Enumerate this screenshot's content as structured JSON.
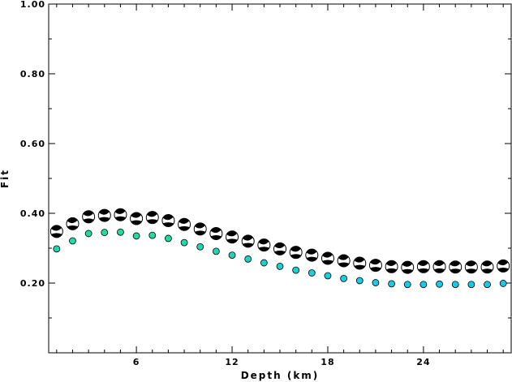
{
  "chart_data": {
    "type": "scatter",
    "title": "",
    "xlabel": "Depth (km)",
    "ylabel": "Fit",
    "xlim": [
      0.5,
      29.5
    ],
    "ylim": [
      0.0,
      1.0
    ],
    "xticks": [
      6,
      12,
      18,
      24
    ],
    "yticks": [
      0.2,
      0.4,
      0.6,
      0.8,
      1.0
    ],
    "ytick_labels": [
      "0.20",
      "0.40",
      "0.60",
      "0.80",
      "1.00"
    ],
    "grid": false,
    "colors": {
      "beachball": "#000000",
      "small_marker_low": "#1cc8e8",
      "small_marker_high": "#22dd99"
    },
    "series": [
      {
        "marker": "beachball",
        "x": [
          1,
          2,
          3,
          4,
          5,
          6,
          7,
          8,
          9,
          10,
          11,
          12,
          13,
          14,
          15,
          16,
          17,
          18,
          19,
          20,
          21,
          22,
          23,
          24,
          25,
          26,
          27,
          28,
          29
        ],
        "y": [
          0.348,
          0.37,
          0.39,
          0.394,
          0.396,
          0.385,
          0.388,
          0.379,
          0.368,
          0.355,
          0.342,
          0.332,
          0.32,
          0.309,
          0.298,
          0.288,
          0.28,
          0.271,
          0.264,
          0.257,
          0.251,
          0.247,
          0.245,
          0.247,
          0.247,
          0.246,
          0.246,
          0.246,
          0.249
        ]
      },
      {
        "marker": "circle",
        "x": [
          1,
          2,
          3,
          4,
          5,
          6,
          7,
          8,
          9,
          10,
          11,
          12,
          13,
          14,
          15,
          16,
          17,
          18,
          19,
          20,
          21,
          22,
          23,
          24,
          25,
          26,
          27,
          28,
          29
        ],
        "y": [
          0.298,
          0.321,
          0.342,
          0.345,
          0.346,
          0.335,
          0.337,
          0.328,
          0.316,
          0.304,
          0.291,
          0.28,
          0.269,
          0.258,
          0.248,
          0.237,
          0.229,
          0.221,
          0.213,
          0.207,
          0.201,
          0.198,
          0.196,
          0.196,
          0.197,
          0.196,
          0.196,
          0.196,
          0.199
        ]
      }
    ]
  }
}
